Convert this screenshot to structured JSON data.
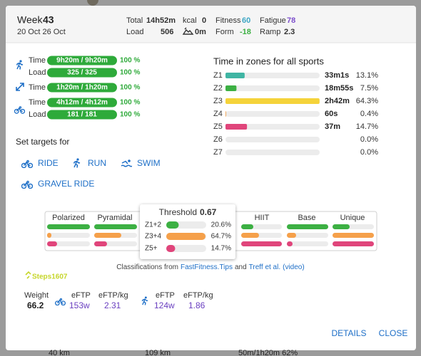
{
  "header": {
    "week_label": "Week",
    "week": "43",
    "dates": "20 Oct 26 Oct",
    "total_label": "Total",
    "total": "14h52m",
    "kcal_label": "kcal",
    "kcal": "0",
    "fitness_label": "Fitness",
    "fitness": "60",
    "fatigue_label": "Fatigue",
    "fatigue": "78",
    "load_label": "Load",
    "load": "506",
    "elevation": "0m",
    "form_label": "Form",
    "form": "-18",
    "ramp_label": "Ramp",
    "ramp": "2.3"
  },
  "targets": [
    {
      "label": "Time",
      "value": "9h20m / 9h20m",
      "percent": "100 %"
    },
    {
      "label": "Load",
      "value": "325 / 325",
      "percent": "100 %"
    },
    {
      "label": "Time",
      "value": "1h20m / 1h20m",
      "percent": "100 %"
    },
    {
      "label": "Time",
      "value": "4h12m / 4h12m",
      "percent": "100 %"
    },
    {
      "label": "Load",
      "value": "181 / 181",
      "percent": "100 %"
    }
  ],
  "set_targets": {
    "title": "Set targets for",
    "sports": [
      "RIDE",
      "RUN",
      "SWIM",
      "GRAVEL RIDE"
    ]
  },
  "zones": {
    "title": "Time in zones for all sports",
    "rows": [
      {
        "name": "Z1",
        "time": "33m1s",
        "percent": 13.1,
        "percent_label": "13.1%",
        "color": "#3fb5a3"
      },
      {
        "name": "Z2",
        "time": "18m55s",
        "percent": 7.5,
        "percent_label": "7.5%",
        "color": "#3cb043"
      },
      {
        "name": "Z3",
        "time": "2h42m",
        "percent": 64.3,
        "percent_label": "64.3%",
        "color": "#f5d33a"
      },
      {
        "name": "Z4",
        "time": "60s",
        "percent": 0.4,
        "percent_label": "0.4%",
        "color": "#f09a3e"
      },
      {
        "name": "Z5",
        "time": "37m",
        "percent": 14.7,
        "percent_label": "14.7%",
        "color": "#e0457b"
      },
      {
        "name": "Z6",
        "percent": 0.0,
        "percent_label": "0.0%"
      },
      {
        "name": "Z7",
        "percent": 0.0,
        "percent_label": "0.0%"
      }
    ]
  },
  "classification": {
    "cards": [
      "Polarized",
      "Pyramidal",
      "HIIT",
      "Base",
      "Unique"
    ],
    "popup": {
      "title": "Threshold",
      "value": "0.67",
      "rows": [
        {
          "name": "Z1+2",
          "percent": 20.6,
          "percent_label": "20.6%",
          "color": "#3cb043"
        },
        {
          "name": "Z3+4",
          "percent": 64.7,
          "percent_label": "64.7%",
          "color": "#f5a04a"
        },
        {
          "name": "Z5+",
          "percent": 14.7,
          "percent_label": "14.7%",
          "color": "#e0457b"
        }
      ]
    },
    "credit": {
      "prefix": "Classifications from",
      "link1": "FastFitness.Tips",
      "and": "and",
      "link2": "Treff et al.",
      "video": "(video)"
    }
  },
  "steps": "Steps1607",
  "metrics": {
    "weight_label": "Weight",
    "weight": "66.2",
    "ride": {
      "eftp_label": "eFTP",
      "eftp": "153w",
      "eftp_kg_label": "eFTP/kg",
      "eftp_kg": "2.31"
    },
    "run": {
      "eftp_label": "eFTP",
      "eftp": "124w",
      "eftp_kg_label": "eFTP/kg",
      "eftp_kg": "1.86"
    }
  },
  "actions": [
    "DETAILS",
    "CLOSE"
  ],
  "background": [
    "40 km",
    "109 km",
    "50m/1h20m 62%"
  ]
}
